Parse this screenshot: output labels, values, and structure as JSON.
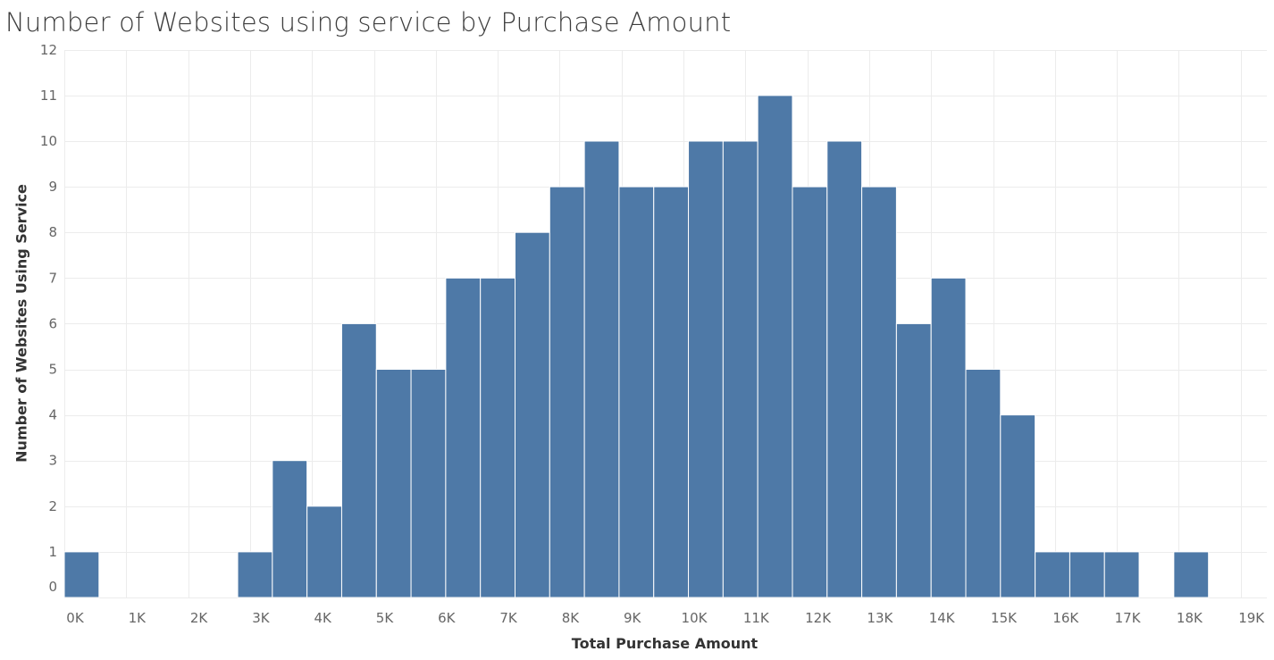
{
  "title": "Number of Websites using service by Purchase Amount",
  "chart_data": {
    "type": "bar",
    "title": "Number of Websites using service by Purchase Amount",
    "xlabel": "Total Purchase Amount",
    "ylabel": "Number of Websites Using Service",
    "bin_width": 560,
    "xlim": [
      0,
      19000
    ],
    "ylim": [
      0,
      12
    ],
    "bar_color": "#4e79a7",
    "grid": true,
    "x_ticks": [
      {
        "value": 0,
        "label": "0K"
      },
      {
        "value": 1000,
        "label": "1K"
      },
      {
        "value": 2000,
        "label": "2K"
      },
      {
        "value": 3000,
        "label": "3K"
      },
      {
        "value": 4000,
        "label": "4K"
      },
      {
        "value": 5000,
        "label": "5K"
      },
      {
        "value": 6000,
        "label": "6K"
      },
      {
        "value": 7000,
        "label": "7K"
      },
      {
        "value": 8000,
        "label": "8K"
      },
      {
        "value": 9000,
        "label": "9K"
      },
      {
        "value": 10000,
        "label": "10K"
      },
      {
        "value": 11000,
        "label": "11K"
      },
      {
        "value": 12000,
        "label": "12K"
      },
      {
        "value": 13000,
        "label": "13K"
      },
      {
        "value": 14000,
        "label": "14K"
      },
      {
        "value": 15000,
        "label": "15K"
      },
      {
        "value": 16000,
        "label": "16K"
      },
      {
        "value": 17000,
        "label": "17K"
      },
      {
        "value": 18000,
        "label": "18K"
      },
      {
        "value": 19000,
        "label": "19K"
      }
    ],
    "y_ticks": [
      "0",
      "1",
      "2",
      "3",
      "4",
      "5",
      "6",
      "7",
      "8",
      "9",
      "10",
      "11",
      "12"
    ],
    "bins": [
      {
        "start": 0,
        "value": 1
      },
      {
        "start": 560,
        "value": 0
      },
      {
        "start": 1120,
        "value": 0
      },
      {
        "start": 1680,
        "value": 0
      },
      {
        "start": 2240,
        "value": 0
      },
      {
        "start": 2800,
        "value": 1
      },
      {
        "start": 3360,
        "value": 3
      },
      {
        "start": 3920,
        "value": 2
      },
      {
        "start": 4480,
        "value": 6
      },
      {
        "start": 5040,
        "value": 5
      },
      {
        "start": 5600,
        "value": 5
      },
      {
        "start": 6160,
        "value": 7
      },
      {
        "start": 6720,
        "value": 7
      },
      {
        "start": 7280,
        "value": 8
      },
      {
        "start": 7840,
        "value": 9
      },
      {
        "start": 8400,
        "value": 10
      },
      {
        "start": 8960,
        "value": 9
      },
      {
        "start": 9520,
        "value": 9
      },
      {
        "start": 10080,
        "value": 10
      },
      {
        "start": 10640,
        "value": 10
      },
      {
        "start": 11200,
        "value": 11
      },
      {
        "start": 11760,
        "value": 9
      },
      {
        "start": 12320,
        "value": 10
      },
      {
        "start": 12880,
        "value": 9
      },
      {
        "start": 13440,
        "value": 6
      },
      {
        "start": 14000,
        "value": 7
      },
      {
        "start": 14560,
        "value": 5
      },
      {
        "start": 15120,
        "value": 4
      },
      {
        "start": 15680,
        "value": 1
      },
      {
        "start": 16240,
        "value": 1
      },
      {
        "start": 16800,
        "value": 1
      },
      {
        "start": 17360,
        "value": 0
      },
      {
        "start": 17920,
        "value": 1
      }
    ]
  }
}
